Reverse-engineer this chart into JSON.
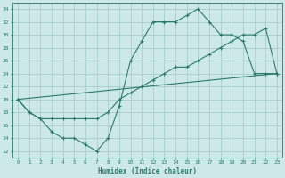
{
  "xlabel": "Humidex (Indice chaleur)",
  "bg_color": "#cce8e8",
  "grid_color": "#aacccc",
  "line_color": "#2a7a6a",
  "xlim": [
    -0.5,
    23.5
  ],
  "ylim": [
    11,
    35
  ],
  "xticks": [
    0,
    1,
    2,
    3,
    4,
    5,
    6,
    7,
    8,
    9,
    10,
    11,
    12,
    13,
    14,
    15,
    16,
    17,
    18,
    19,
    20,
    21,
    22,
    23
  ],
  "yticks": [
    12,
    14,
    16,
    18,
    20,
    22,
    24,
    26,
    28,
    30,
    32,
    34
  ],
  "line1_x": [
    0,
    1,
    2,
    3,
    4,
    5,
    6,
    7,
    8,
    9,
    10,
    11,
    12,
    13,
    14,
    15,
    16,
    17,
    18,
    19,
    20,
    21,
    22,
    23
  ],
  "line1_y": [
    20,
    18,
    17,
    15,
    14,
    14,
    13,
    12,
    14,
    19,
    26,
    29,
    32,
    32,
    32,
    33,
    34,
    32,
    30,
    30,
    29,
    24,
    24,
    24
  ],
  "line2_x": [
    0,
    1,
    2,
    3,
    4,
    5,
    6,
    7,
    8,
    9,
    10,
    11,
    12,
    13,
    14,
    15,
    16,
    17,
    18,
    19,
    20,
    21,
    22,
    23
  ],
  "line2_y": [
    20,
    18,
    17,
    17,
    17,
    17,
    17,
    17,
    18,
    20,
    21,
    22,
    23,
    24,
    25,
    25,
    26,
    27,
    28,
    29,
    30,
    30,
    31,
    24
  ],
  "line3_x": [
    0,
    23
  ],
  "line3_y": [
    20,
    24
  ]
}
